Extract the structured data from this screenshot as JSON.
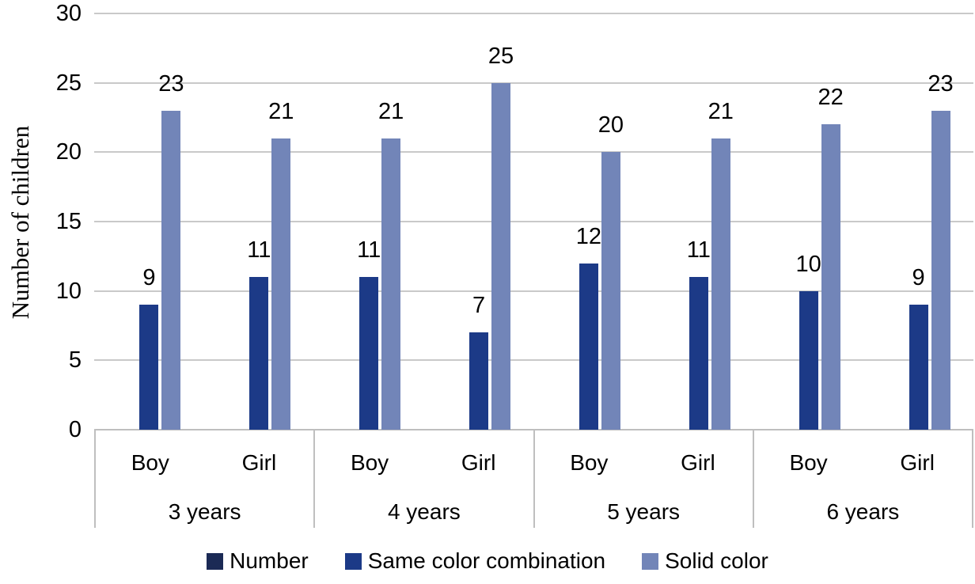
{
  "chart_data": {
    "type": "bar",
    "title": "",
    "xlabel": "",
    "ylabel": "Number of children",
    "ylim": [
      0,
      30
    ],
    "ytick_step": 5,
    "yticks": [
      0,
      5,
      10,
      15,
      20,
      25,
      30
    ],
    "grid": true,
    "legend_position": "bottom",
    "group_labels": [
      "3 years",
      "4 years",
      "5 years",
      "6 years"
    ],
    "sub_labels": [
      "Boy",
      "Girl"
    ],
    "series": [
      {
        "name": "Number",
        "color": "#1b2a55",
        "values": []
      },
      {
        "name": "Same color combination",
        "color": "#1c3a87",
        "values": [
          9,
          11,
          11,
          7,
          12,
          11,
          10,
          9
        ]
      },
      {
        "name": "Solid color",
        "color": "#7285b8",
        "values": [
          23,
          21,
          21,
          25,
          20,
          21,
          22,
          23
        ]
      }
    ],
    "note": "Number series has a legend entry but no visible bars; each Boy/Girl category shows an empty first slot, a dark blue bar and a light slate-blue bar with value labels above.",
    "colors": {
      "gridline": "#c9c9c9",
      "axis_line": "#bfbfbf",
      "text": "#000000",
      "background": "#ffffff"
    }
  }
}
